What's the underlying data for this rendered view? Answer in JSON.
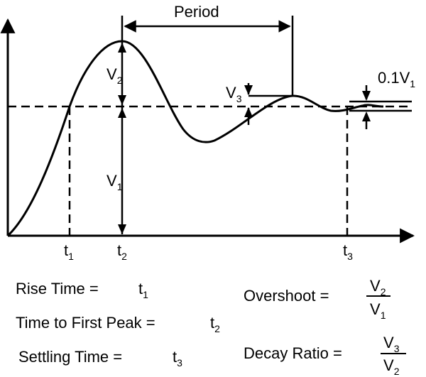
{
  "diagram": {
    "period_label": "Period",
    "tolerance_prefix": "0.1V",
    "tolerance_sub": "1",
    "v1": {
      "base": "V",
      "sub": "1"
    },
    "v2": {
      "base": "V",
      "sub": "2"
    },
    "v3": {
      "base": "V",
      "sub": "3"
    },
    "t1": {
      "base": "t",
      "sub": "1"
    },
    "t2": {
      "base": "t",
      "sub": "2"
    },
    "t3": {
      "base": "t",
      "sub": "3"
    }
  },
  "definitions": {
    "rise_time": {
      "label": "Rise Time =",
      "base": "t",
      "sub": "1"
    },
    "first_peak": {
      "label": "Time to First Peak =",
      "base": "t",
      "sub": "2"
    },
    "settling": {
      "label": "Settling Time =",
      "base": "t",
      "sub": "3"
    },
    "overshoot": {
      "label": "Overshoot =",
      "num_base": "V",
      "num_sub": "2",
      "den_base": "V",
      "den_sub": "1"
    },
    "decay_ratio": {
      "label": "Decay Ratio =",
      "num_base": "V",
      "num_sub": "3",
      "den_base": "V",
      "den_sub": "2"
    }
  },
  "colors": {
    "ink": "#000000",
    "background": "#ffffff"
  }
}
